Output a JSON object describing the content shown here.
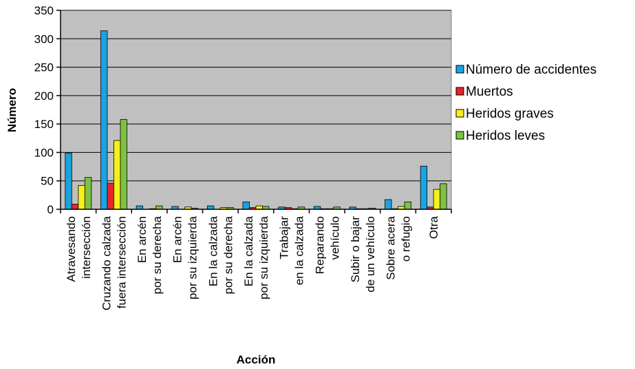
{
  "chart_data": {
    "type": "bar",
    "title": "",
    "xlabel": "Acción",
    "ylabel": "Número",
    "ylim": [
      0,
      350
    ],
    "yticks": [
      0,
      50,
      100,
      150,
      200,
      250,
      300,
      350
    ],
    "grid": true,
    "legend_position": "right",
    "categories": [
      [
        "Atravesando",
        "intersección"
      ],
      [
        "Cruzando calzada",
        "fuera intersección"
      ],
      [
        "En arcén",
        "por su derecha"
      ],
      [
        "En arcén",
        "por su izquierda"
      ],
      [
        "En la calzada",
        "por su derecha"
      ],
      [
        "En la calzada",
        "por su izquierda"
      ],
      [
        "Trabajar",
        "en la calzada"
      ],
      [
        "Reparando",
        "vehículo"
      ],
      [
        "Subir o bajar",
        "de un vehículo"
      ],
      [
        "Sobre acera",
        "o refugio"
      ],
      [
        "Otra"
      ]
    ],
    "series": [
      {
        "name": "Número de accidentes",
        "color": "#1aa3e0",
        "values": [
          99,
          314,
          6,
          5,
          6,
          13,
          4,
          5,
          4,
          17,
          76
        ]
      },
      {
        "name": "Muertos",
        "color": "#e8242b",
        "values": [
          9,
          46,
          0,
          0,
          0,
          3,
          3,
          1,
          1,
          1,
          4
        ]
      },
      {
        "name": "Heridos graves",
        "color": "#f5ef1c",
        "values": [
          42,
          121,
          1,
          4,
          3,
          6,
          1,
          1,
          1,
          5,
          35
        ]
      },
      {
        "name": "Heridos leves",
        "color": "#7dc242",
        "values": [
          56,
          158,
          6,
          2,
          3,
          5,
          4,
          4,
          2,
          13,
          45
        ]
      }
    ]
  }
}
